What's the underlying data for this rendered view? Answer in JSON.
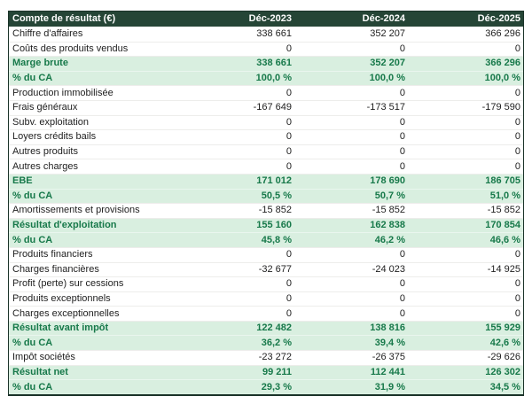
{
  "chart_data": {
    "type": "table",
    "title": "Compte de résultat (€)",
    "columns": [
      "Déc-2023",
      "Déc-2024",
      "Déc-2025"
    ],
    "rows": [
      {
        "label": "Chiffre d'affaires",
        "values": [
          "338 661",
          "352 207",
          "366 296"
        ],
        "highlight": false
      },
      {
        "label": "Coûts des produits vendus",
        "values": [
          "0",
          "0",
          "0"
        ],
        "highlight": false
      },
      {
        "label": "Marge brute",
        "values": [
          "338 661",
          "352 207",
          "366 296"
        ],
        "highlight": true
      },
      {
        "label": "% du CA",
        "values": [
          "100,0 %",
          "100,0 %",
          "100,0 %"
        ],
        "highlight": true
      },
      {
        "label": "Production immobilisée",
        "values": [
          "0",
          "0",
          "0"
        ],
        "highlight": false
      },
      {
        "label": "Frais généraux",
        "values": [
          "-167 649",
          "-173 517",
          "-179 590"
        ],
        "highlight": false
      },
      {
        "label": "Subv. exploitation",
        "values": [
          "0",
          "0",
          "0"
        ],
        "highlight": false
      },
      {
        "label": "Loyers crédits bails",
        "values": [
          "0",
          "0",
          "0"
        ],
        "highlight": false
      },
      {
        "label": "Autres produits",
        "values": [
          "0",
          "0",
          "0"
        ],
        "highlight": false
      },
      {
        "label": "Autres charges",
        "values": [
          "0",
          "0",
          "0"
        ],
        "highlight": false
      },
      {
        "label": "EBE",
        "values": [
          "171 012",
          "178 690",
          "186 705"
        ],
        "highlight": true
      },
      {
        "label": "% du CA",
        "values": [
          "50,5 %",
          "50,7 %",
          "51,0 %"
        ],
        "highlight": true
      },
      {
        "label": "Amortissements et provisions",
        "values": [
          "-15 852",
          "-15 852",
          "-15 852"
        ],
        "highlight": false
      },
      {
        "label": "Résultat d'exploitation",
        "values": [
          "155 160",
          "162 838",
          "170 854"
        ],
        "highlight": true
      },
      {
        "label": "% du CA",
        "values": [
          "45,8 %",
          "46,2 %",
          "46,6 %"
        ],
        "highlight": true
      },
      {
        "label": "Produits financiers",
        "values": [
          "0",
          "0",
          "0"
        ],
        "highlight": false
      },
      {
        "label": "Charges financières",
        "values": [
          "-32 677",
          "-24 023",
          "-14 925"
        ],
        "highlight": false
      },
      {
        "label": "Profit (perte) sur cessions",
        "values": [
          "0",
          "0",
          "0"
        ],
        "highlight": false
      },
      {
        "label": "Produits exceptionnels",
        "values": [
          "0",
          "0",
          "0"
        ],
        "highlight": false
      },
      {
        "label": "Charges exceptionnelles",
        "values": [
          "0",
          "0",
          "0"
        ],
        "highlight": false
      },
      {
        "label": "Résultat avant impôt",
        "values": [
          "122 482",
          "138 816",
          "155 929"
        ],
        "highlight": true
      },
      {
        "label": "% du CA",
        "values": [
          "36,2 %",
          "39,4 %",
          "42,6 %"
        ],
        "highlight": true
      },
      {
        "label": "Impôt sociétés",
        "values": [
          "-23 272",
          "-26 375",
          "-29 626"
        ],
        "highlight": false
      },
      {
        "label": "Résultat net",
        "values": [
          "99 211",
          "112 441",
          "126 302"
        ],
        "highlight": true
      },
      {
        "label": "% du CA",
        "values": [
          "29,3 %",
          "31,9 %",
          "34,5 %"
        ],
        "highlight": true
      }
    ],
    "layout": {
      "legend": "none",
      "grid": "horizontal-separators",
      "header_position": "top"
    },
    "colors": {
      "header_bg": "#254536",
      "header_text": "#ffffff",
      "highlight_bg": "#d9efe0",
      "highlight_text": "#17794a",
      "body_text": "#1e1e1e",
      "row_bg": "#ffffff",
      "border": "#1b3329",
      "separator": "#ededeb"
    }
  }
}
